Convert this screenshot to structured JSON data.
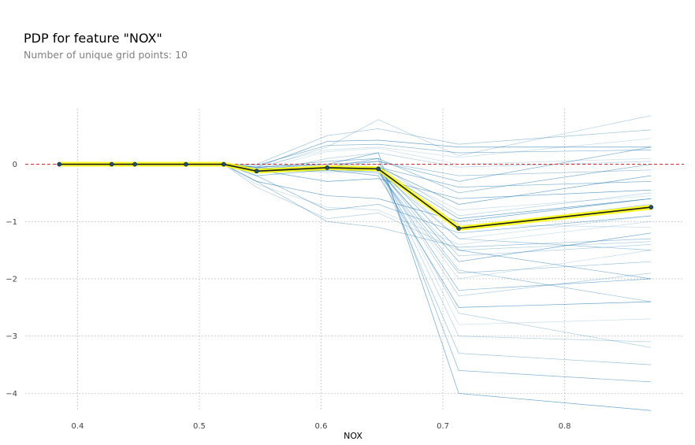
{
  "header": {
    "title": "PDP for feature \"NOX\"",
    "subtitle": "Number of unique grid points: 10"
  },
  "colors": {
    "ice_line": "#1f77b4",
    "pdp_line": "#1a1a1a",
    "pdp_band": "#ffff00",
    "pdp_marker": "#1f4e79",
    "reference_line": "#d62728",
    "grid": "#bdbdbd"
  },
  "chart_data": {
    "type": "line",
    "title": "PDP for feature \"NOX\"",
    "subtitle": "Number of unique grid points: 10",
    "xlabel": "NOX",
    "ylabel": "",
    "xlim": [
      0.357,
      0.898
    ],
    "ylim": [
      -4.42,
      0.97
    ],
    "x_ticks": [
      0.4,
      0.5,
      0.6,
      0.7,
      0.8
    ],
    "x_tick_labels": [
      "0.4",
      "0.5",
      "0.6",
      "0.7",
      "0.8"
    ],
    "y_ticks": [
      0,
      -1,
      -2,
      -3,
      -4
    ],
    "y_tick_labels": [
      "0",
      "−1",
      "−2",
      "−3",
      "−4"
    ],
    "grid": true,
    "reference_line_y": 0,
    "grid_points": [
      0.385,
      0.428,
      0.447,
      0.489,
      0.52,
      0.547,
      0.605,
      0.647,
      0.713,
      0.871
    ],
    "pdp": [
      0,
      0,
      0,
      0,
      0,
      -0.12,
      -0.06,
      -0.08,
      -1.12,
      -0.75
    ],
    "ice_series": [
      [
        0,
        0,
        0,
        0,
        0,
        -0.05,
        0.25,
        0.3,
        0.12,
        0.45
      ],
      [
        0,
        0,
        0,
        0,
        0,
        -0.08,
        0.3,
        0.78,
        0.15,
        0.85
      ],
      [
        0,
        0,
        0,
        0,
        0,
        0.0,
        0.5,
        0.62,
        0.35,
        0.6
      ],
      [
        0,
        0,
        0,
        0,
        0,
        -0.02,
        0.33,
        0.35,
        0.2,
        0.25
      ],
      [
        0,
        0,
        0,
        0,
        0,
        -0.05,
        0.4,
        0.42,
        0.3,
        0.3
      ],
      [
        0,
        0,
        0,
        0,
        0,
        -0.1,
        0.22,
        0.28,
        0.0,
        0.1
      ],
      [
        0,
        0,
        0,
        0,
        0,
        -0.15,
        0.1,
        0.2,
        -0.05,
        0.05
      ],
      [
        0,
        0,
        0,
        0,
        0,
        -0.1,
        -0.05,
        0.05,
        -0.2,
        -0.1
      ],
      [
        0,
        0,
        0,
        0,
        0,
        -0.2,
        -0.1,
        -0.05,
        -0.4,
        -0.3
      ],
      [
        0,
        0,
        0,
        0,
        0,
        -0.3,
        -0.55,
        -0.6,
        -1.0,
        -0.6
      ],
      [
        0,
        0,
        0,
        0,
        0,
        -0.35,
        -0.75,
        -0.8,
        -1.4,
        -1.0
      ],
      [
        0,
        0,
        0,
        0,
        0,
        -0.4,
        -0.95,
        -0.85,
        -1.5,
        -1.35
      ],
      [
        0,
        0,
        0,
        0,
        0,
        -0.3,
        -1.0,
        -1.1,
        -1.45,
        -1.3
      ],
      [
        0,
        0,
        0,
        0,
        0,
        -0.2,
        -0.8,
        -0.7,
        -1.2,
        -0.9
      ],
      [
        0,
        0,
        0,
        0,
        0,
        -0.1,
        -0.3,
        -0.25,
        -0.6,
        -0.45
      ],
      [
        0,
        0,
        0,
        0,
        0,
        -0.05,
        -0.15,
        -0.1,
        -0.8,
        -0.55
      ],
      [
        0,
        0,
        0,
        0,
        0,
        -0.08,
        -0.1,
        -0.12,
        -1.6,
        -1.4
      ],
      [
        0,
        0,
        0,
        0,
        0,
        -0.12,
        -0.08,
        -0.15,
        -1.9,
        -1.7
      ],
      [
        0,
        0,
        0,
        0,
        0,
        -0.1,
        -0.05,
        -0.1,
        -2.2,
        -2.0
      ],
      [
        0,
        0,
        0,
        0,
        0,
        -0.15,
        -0.1,
        -0.2,
        -2.5,
        -2.4
      ],
      [
        0,
        0,
        0,
        0,
        0,
        -0.05,
        0.0,
        0.0,
        -2.8,
        -2.7
      ],
      [
        0,
        0,
        0,
        0,
        0,
        -0.1,
        -0.05,
        -0.05,
        -3.0,
        -3.1
      ],
      [
        0,
        0,
        0,
        0,
        0,
        -0.12,
        -0.1,
        -0.08,
        -3.3,
        -3.5
      ],
      [
        0,
        0,
        0,
        0,
        0,
        -0.1,
        -0.05,
        0.1,
        -3.6,
        -3.8
      ],
      [
        0,
        0,
        0,
        0,
        0,
        -0.05,
        0.0,
        0.2,
        -4.0,
        -4.3
      ],
      [
        0,
        0,
        0,
        0,
        0,
        -0.1,
        -0.1,
        -0.05,
        -1.3,
        -0.9
      ],
      [
        0,
        0,
        0,
        0,
        0,
        -0.08,
        -0.05,
        0.0,
        -0.9,
        -0.5
      ],
      [
        0,
        0,
        0,
        0,
        0,
        -0.1,
        -0.1,
        -0.1,
        -1.1,
        -0.7
      ],
      [
        0,
        0,
        0,
        0,
        0,
        -0.06,
        0.05,
        0.1,
        -0.5,
        0.0
      ],
      [
        0,
        0,
        0,
        0,
        0,
        -0.1,
        -0.05,
        -0.08,
        -1.7,
        -1.2
      ],
      [
        0,
        0,
        0,
        0,
        0,
        -0.12,
        -0.12,
        -0.15,
        -2.0,
        -1.5
      ],
      [
        0,
        0,
        0,
        0,
        0,
        -0.1,
        -0.08,
        -0.1,
        -2.3,
        -1.9
      ],
      [
        0,
        0,
        0,
        0,
        0,
        -0.14,
        -0.1,
        -0.12,
        -1.3,
        -1.5
      ],
      [
        0,
        0,
        0,
        0,
        0,
        -0.08,
        0.0,
        0.05,
        -0.3,
        0.3
      ],
      [
        0,
        0,
        0,
        0,
        0,
        -0.1,
        -0.05,
        -0.05,
        -0.7,
        -0.2
      ],
      [
        0,
        0,
        0,
        0,
        0,
        -0.12,
        -0.1,
        -0.1,
        -1.05,
        -1.1
      ],
      [
        0,
        0,
        0,
        0,
        0,
        -0.1,
        -0.08,
        -0.08,
        -2.6,
        -3.2
      ],
      [
        0,
        0,
        0,
        0,
        0,
        -0.1,
        -0.06,
        -0.07,
        -1.85,
        -2.4
      ],
      [
        0,
        0,
        0,
        0,
        0,
        -0.1,
        -0.05,
        -0.05,
        -1.5,
        -2.0
      ],
      [
        0,
        0,
        0,
        0,
        0,
        -0.1,
        -0.07,
        -0.09,
        -0.95,
        -0.6
      ]
    ]
  }
}
